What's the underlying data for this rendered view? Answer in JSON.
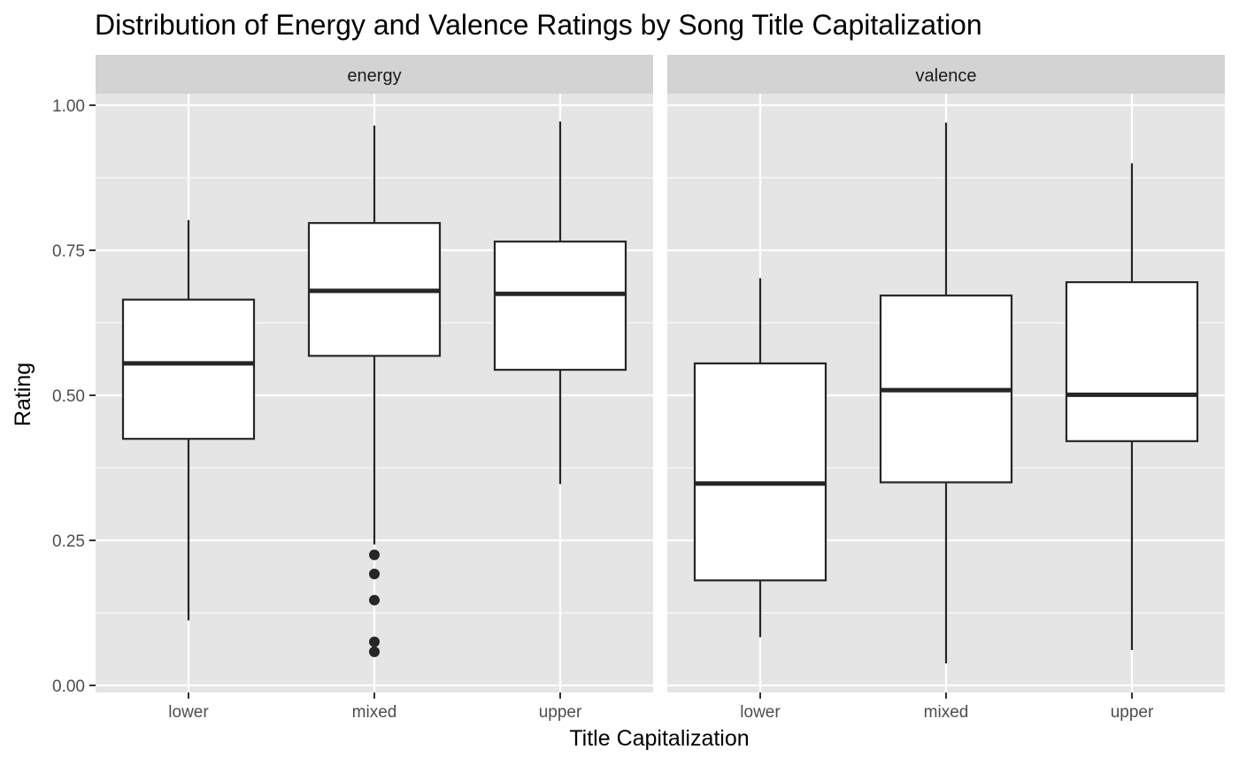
{
  "chart_data": {
    "type": "boxplot",
    "title": "Distribution of Energy and Valence Ratings by Song Title Capitalization",
    "xlabel": "Title Capitalization",
    "ylabel": "Rating",
    "categories": [
      "lower",
      "mixed",
      "upper"
    ],
    "ylim": [
      0,
      1.0
    ],
    "yticks": [
      0.0,
      0.25,
      0.5,
      0.75,
      1.0
    ],
    "ytick_labels": [
      "0.00",
      "0.25",
      "0.50",
      "0.75",
      "1.00"
    ],
    "grid": true,
    "facets": [
      {
        "label": "energy",
        "boxes": [
          {
            "category": "lower",
            "whisker_low": 0.112,
            "q1": 0.425,
            "median": 0.555,
            "q3": 0.665,
            "whisker_high": 0.802,
            "outliers": []
          },
          {
            "category": "mixed",
            "whisker_low": 0.243,
            "q1": 0.568,
            "median": 0.68,
            "q3": 0.797,
            "whisker_high": 0.965,
            "outliers": [
              0.225,
              0.192,
              0.147,
              0.075,
              0.058
            ]
          },
          {
            "category": "upper",
            "whisker_low": 0.347,
            "q1": 0.544,
            "median": 0.675,
            "q3": 0.765,
            "whisker_high": 0.972,
            "outliers": []
          }
        ]
      },
      {
        "label": "valence",
        "boxes": [
          {
            "category": "lower",
            "whisker_low": 0.083,
            "q1": 0.181,
            "median": 0.348,
            "q3": 0.555,
            "whisker_high": 0.702,
            "outliers": []
          },
          {
            "category": "mixed",
            "whisker_low": 0.038,
            "q1": 0.35,
            "median": 0.509,
            "q3": 0.672,
            "whisker_high": 0.97,
            "outliers": []
          },
          {
            "category": "upper",
            "whisker_low": 0.061,
            "q1": 0.421,
            "median": 0.501,
            "q3": 0.695,
            "whisker_high": 0.9,
            "outliers": []
          }
        ]
      }
    ],
    "colors": {
      "panel_background": "#e5e5e5",
      "strip_background": "#d3d3d3",
      "grid": "#ffffff",
      "box_fill": "#ffffff",
      "box_stroke": "#262626",
      "outlier": "#262626",
      "tick_text": "#4d4d4d"
    }
  }
}
